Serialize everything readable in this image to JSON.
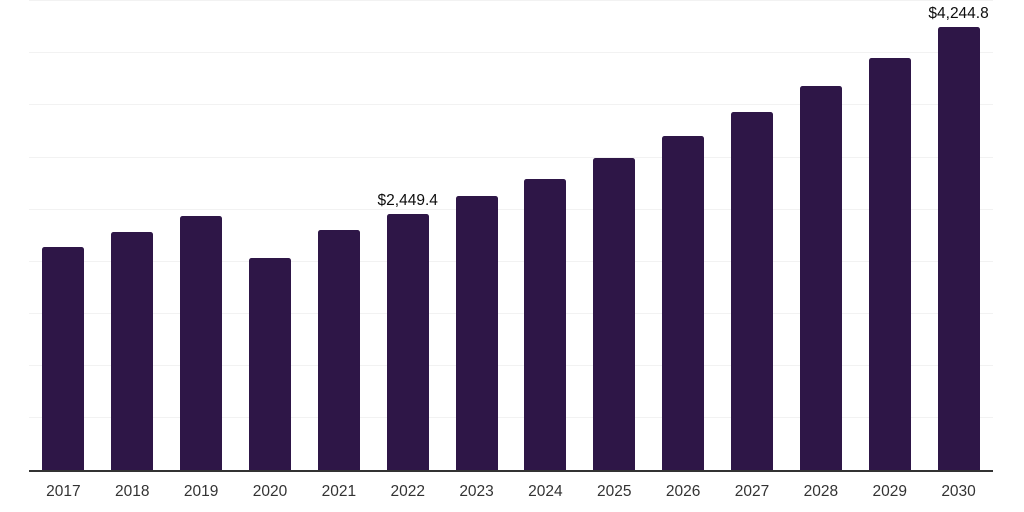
{
  "chart": {
    "background_color": "#ffffff",
    "bar_color": "#2E1647",
    "axis_line_color": "#333333",
    "gridline_color": "#f2f2f2",
    "tick_label_color": "#333333",
    "data_label_color": "#0d0d0d"
  },
  "chart_data": {
    "type": "bar",
    "title": "",
    "xlabel": "",
    "ylabel": "",
    "categories": [
      "2017",
      "2018",
      "2019",
      "2020",
      "2021",
      "2022",
      "2023",
      "2024",
      "2025",
      "2026",
      "2027",
      "2028",
      "2029",
      "2030"
    ],
    "values": [
      2140,
      2278,
      2430,
      2033,
      2297,
      2449.4,
      2630,
      2790,
      2990,
      3205,
      3432,
      3680,
      3950,
      4244.8
    ],
    "annotations": [
      {
        "category": "2022",
        "text": "$2,449.4"
      },
      {
        "category": "2030",
        "text": "$4,244.8"
      }
    ],
    "ylim": [
      0,
      4500
    ],
    "grid_step": 500,
    "grid": true,
    "legend": false,
    "y_axis_labels_visible": false
  }
}
